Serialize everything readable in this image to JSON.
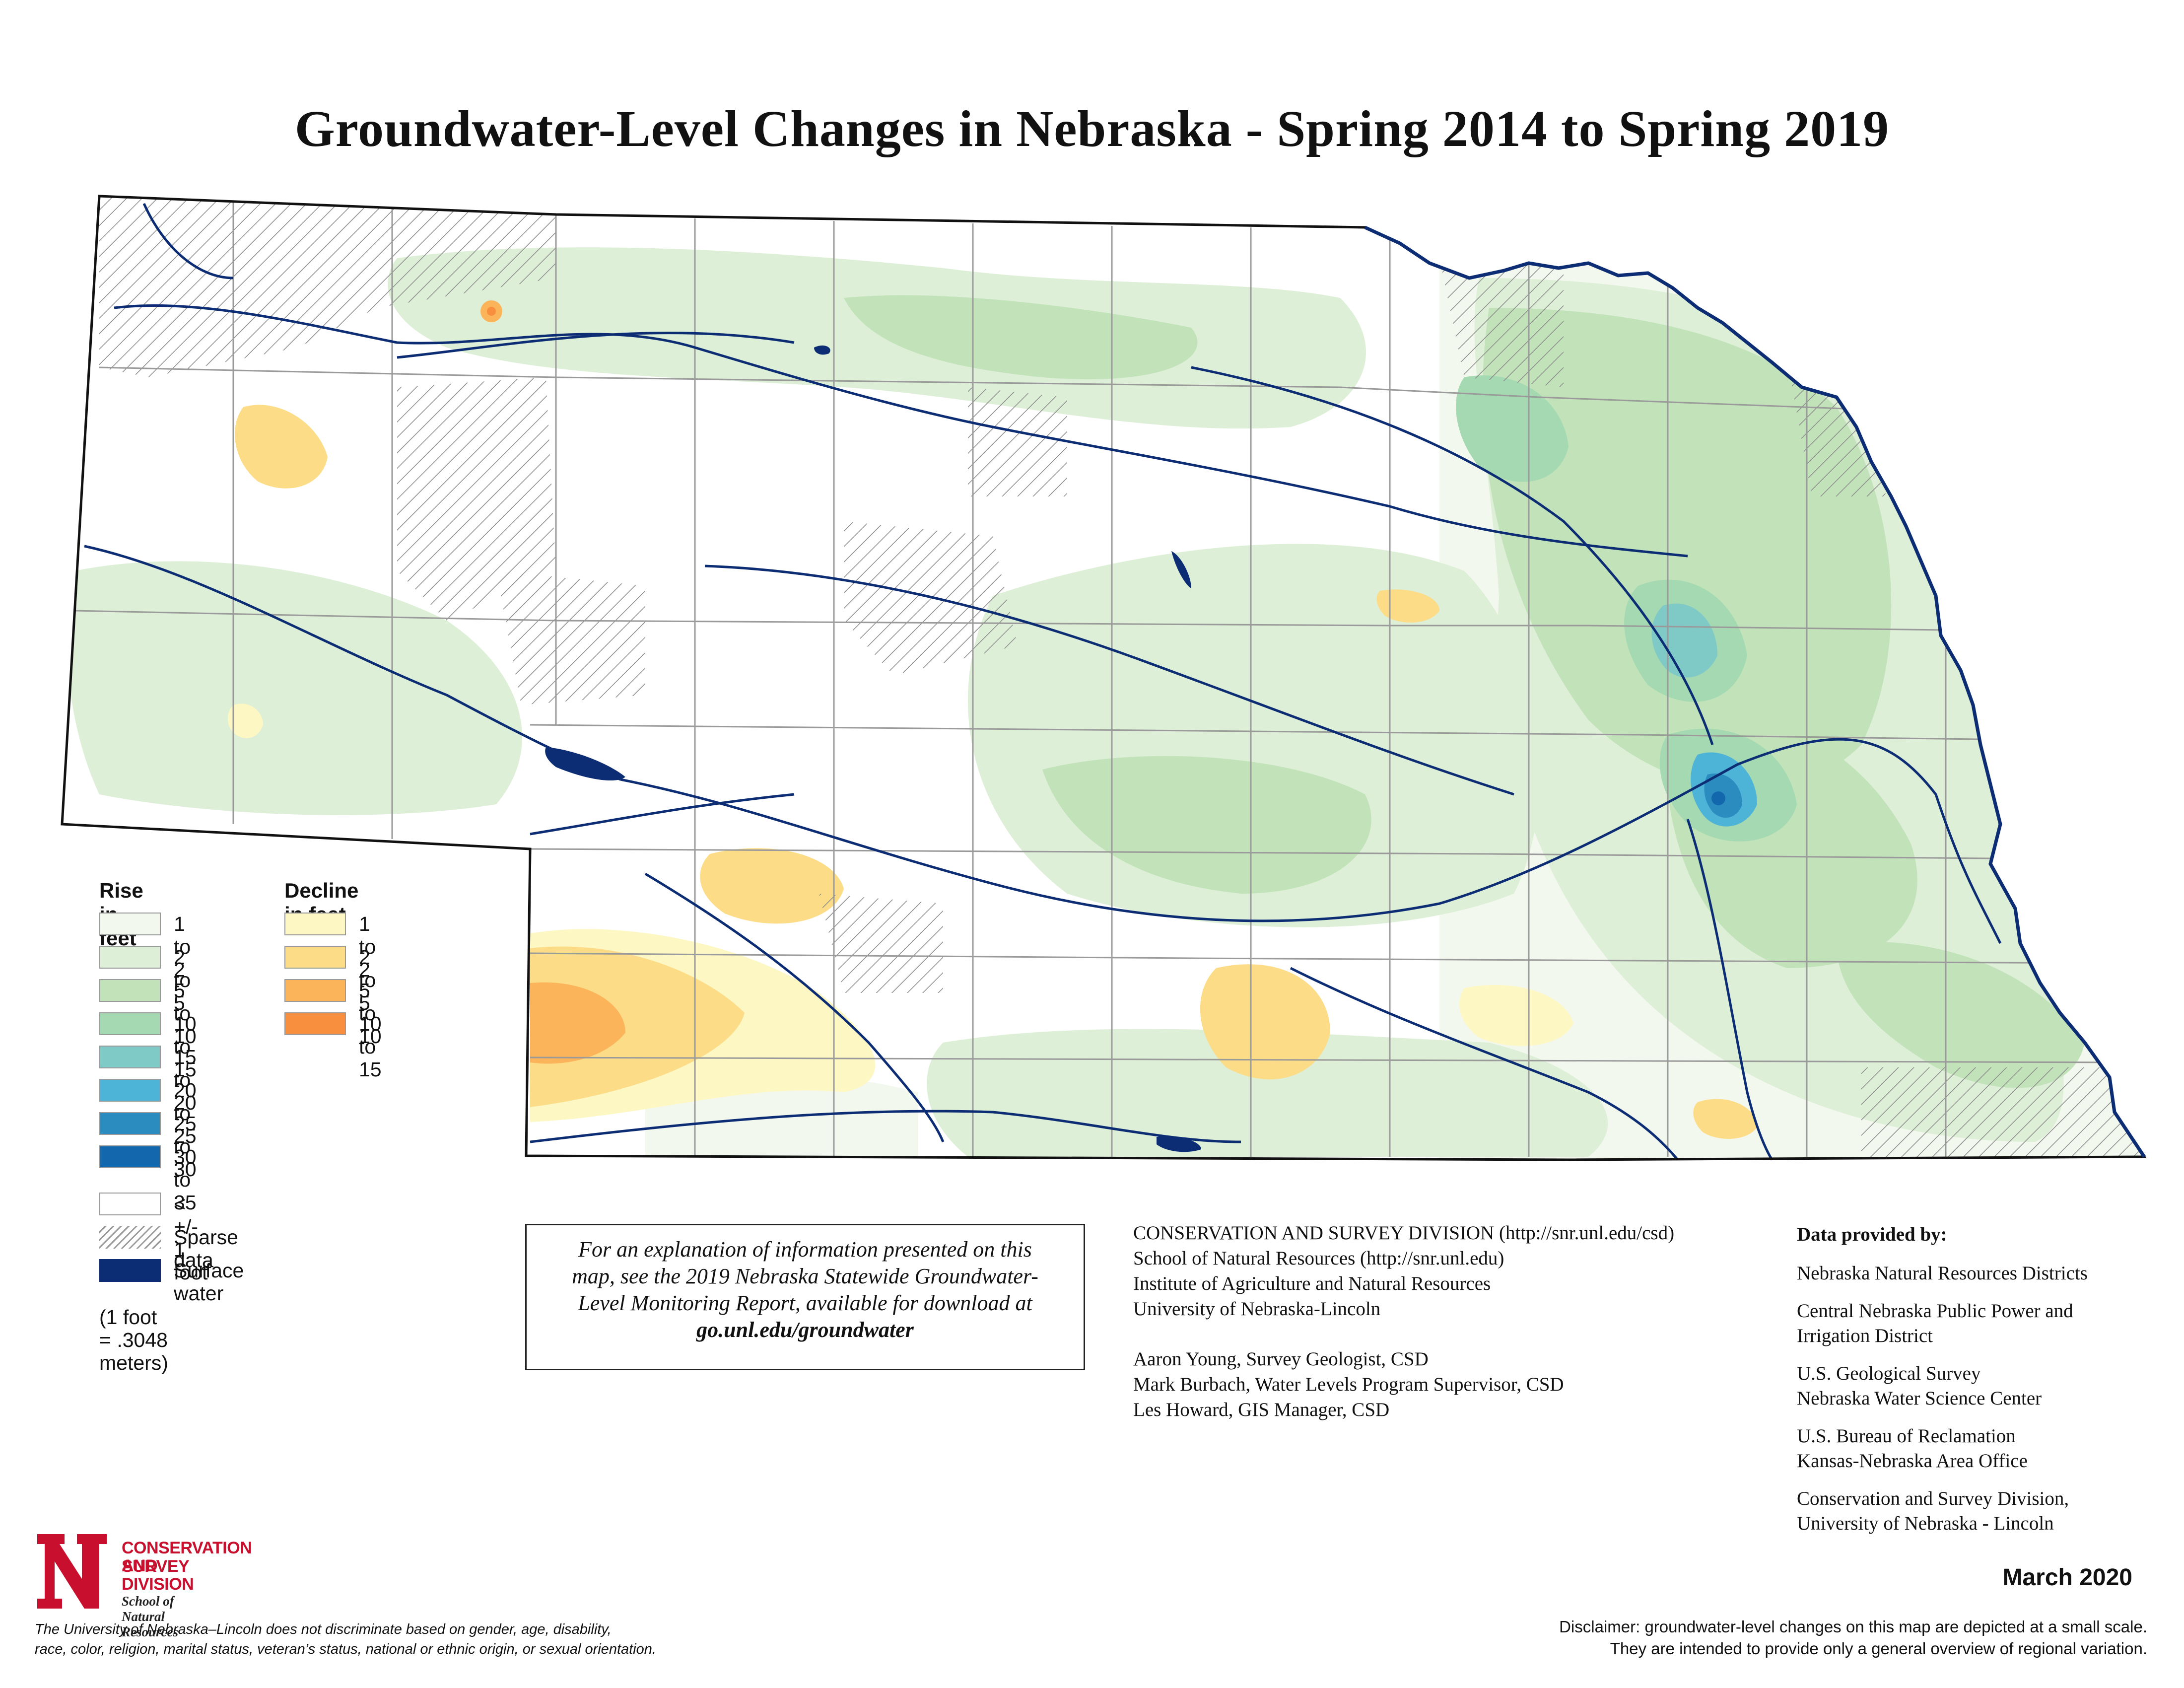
{
  "title": "Groundwater-Level Changes in Nebraska - Spring 2014 to Spring 2019",
  "legend": {
    "rise_heading": "Rise in feet",
    "decline_heading": "Decline in feet",
    "rise": [
      {
        "label": "1 to 2",
        "color": "#f3f8ee"
      },
      {
        "label": "2 to 5",
        "color": "#ddefd6"
      },
      {
        "label": "5 to 10",
        "color": "#c2e3b9"
      },
      {
        "label": "10 to 15",
        "color": "#a4d9b2"
      },
      {
        "label": "15 to 20",
        "color": "#7fcac6"
      },
      {
        "label": "20 to 25",
        "color": "#4db3d7"
      },
      {
        "label": "25 to 30",
        "color": "#2b8cc0"
      },
      {
        "label": "30 to 35",
        "color": "#1367ad"
      }
    ],
    "decline": [
      {
        "label": "1 to 2",
        "color": "#fdf7c4"
      },
      {
        "label": "2 to 5",
        "color": "#fcdc86"
      },
      {
        "label": "5 to 10",
        "color": "#fbb45a"
      },
      {
        "label": "10 to 15",
        "color": "#f88f3f"
      }
    ],
    "other": [
      {
        "label": "< +/- 1 foot",
        "kind": "none",
        "color": "#ffffff"
      },
      {
        "label": "Sparse data",
        "kind": "hatch",
        "color": "#9a9a9a"
      },
      {
        "label": "Surface water",
        "kind": "water",
        "color": "#0c2c74"
      }
    ],
    "conversion": "(1 foot = .3048 meters)"
  },
  "explanation": {
    "line1": "For an explanation of information presented on this",
    "line2": "map, see the 2019 Nebraska Statewide Groundwater-",
    "line3": "Level Monitoring Report, available for download at",
    "link": "go.unl.edu/groundwater"
  },
  "credits": {
    "org_lines": [
      "CONSERVATION AND SURVEY DIVISION (http://snr.unl.edu/csd)",
      "School of Natural Resources (http://snr.unl.edu)",
      "Institute of Agriculture and Natural Resources",
      "University of Nebraska-Lincoln"
    ],
    "people": [
      "Aaron Young, Survey Geologist, CSD",
      "Mark Burbach, Water Levels Program Supervisor, CSD",
      "Les Howard, GIS Manager, CSD"
    ]
  },
  "providers": {
    "heading": "Data provided by:",
    "items": [
      {
        "line1": "Nebraska Natural Resources Districts",
        "line2": ""
      },
      {
        "line1": "Central Nebraska Public Power and",
        "line2": "Irrigation District"
      },
      {
        "line1": "U.S. Geological Survey",
        "line2": "Nebraska Water Science Center"
      },
      {
        "line1": "U.S. Bureau of Reclamation",
        "line2": "Kansas-Nebraska Area Office"
      },
      {
        "line1": "Conservation and Survey Division,",
        "line2": "University of Nebraska - Lincoln"
      }
    ]
  },
  "logo": {
    "letter": "N",
    "line1": "CONSERVATION AND",
    "line2": "SURVEY DIVISION",
    "sub": "School of Natural Resources",
    "color": "#c8102e"
  },
  "date": "March 2020",
  "disclaimer": {
    "line1": "Disclaimer: groundwater-level changes on this map are depicted at a small scale.",
    "line2": "They are intended to provide only a general overview of regional variation."
  },
  "nondiscrimination": {
    "line1": "The University of Nebraska–Lincoln does not discriminate based on gender, age, disability,",
    "line2": "race, color, religion, marital status, veteran’s status, national or ethnic origin, or sexual orientation."
  }
}
